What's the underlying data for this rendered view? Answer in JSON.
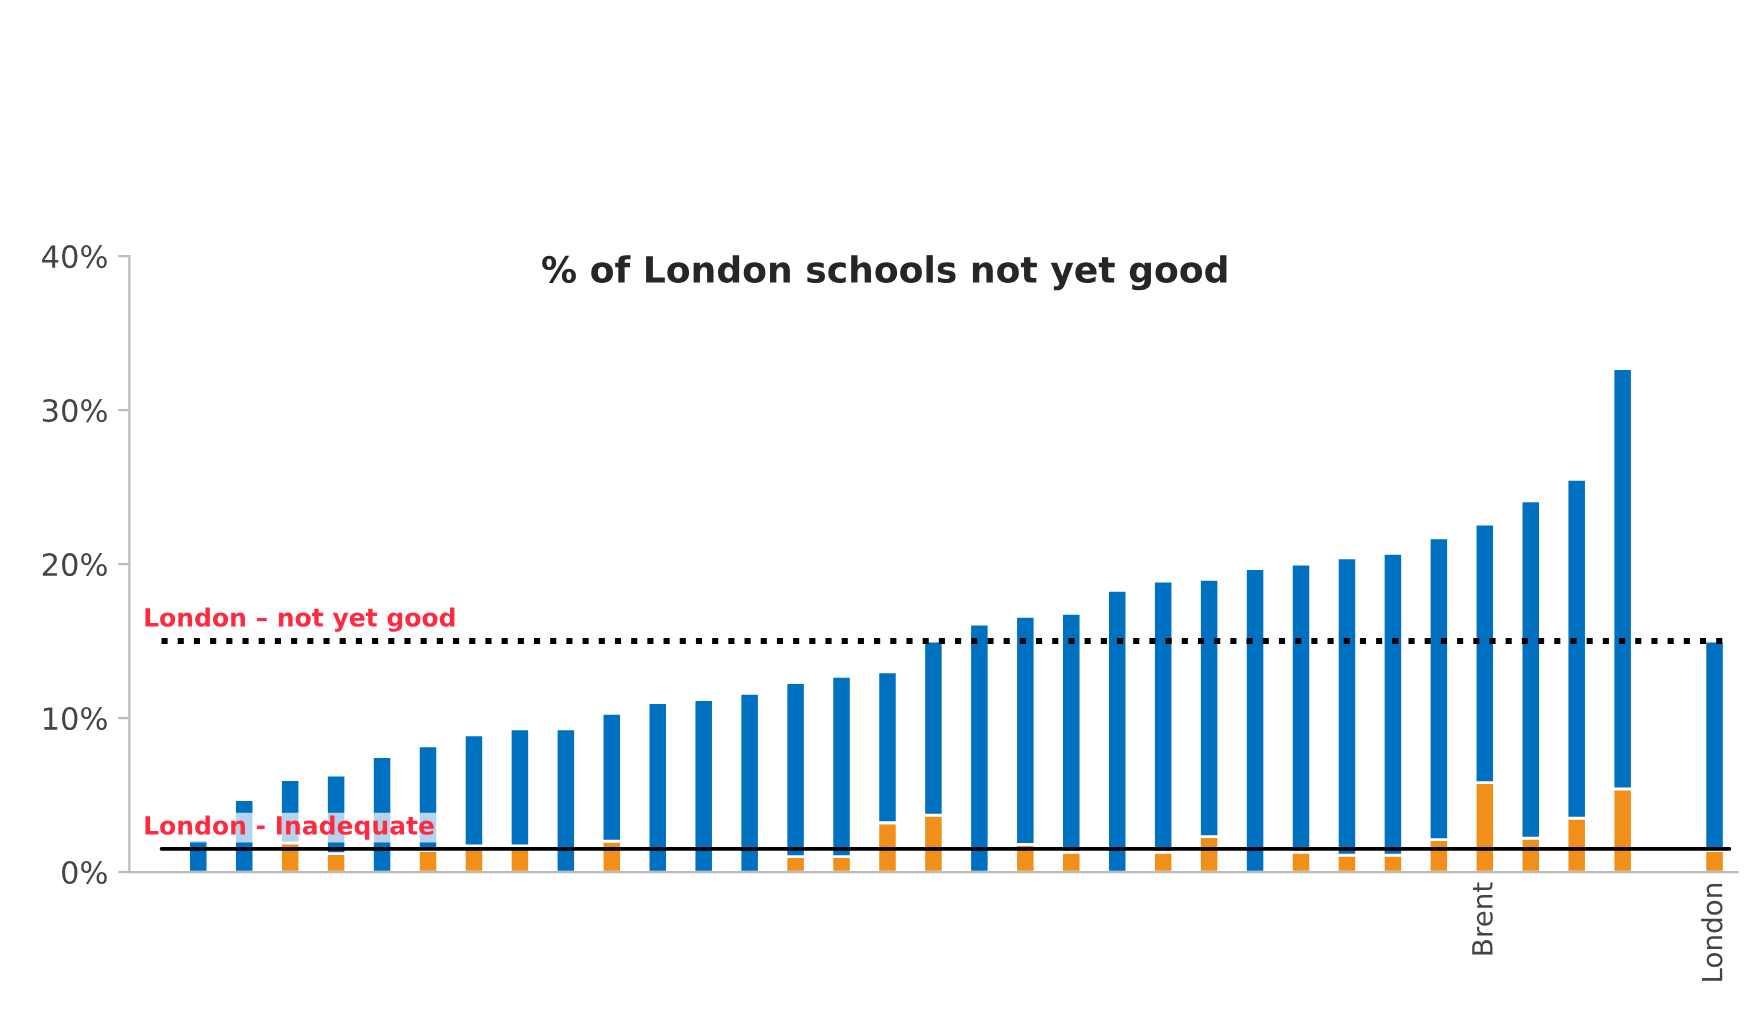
{
  "chart_data": {
    "type": "bar",
    "title": "% of London schools not yet good",
    "categories": [
      null,
      null,
      null,
      null,
      null,
      null,
      null,
      null,
      null,
      null,
      null,
      null,
      null,
      null,
      null,
      null,
      null,
      null,
      null,
      null,
      null,
      null,
      null,
      null,
      null,
      null,
      null,
      null,
      "Brent",
      null,
      null,
      null,
      null,
      "London"
    ],
    "stacked": true,
    "series": [
      {
        "color": "#f0901a",
        "values": [
          0,
          0,
          1.9,
          1.2,
          0,
          1.4,
          1.7,
          1.7,
          0,
          2.0,
          0,
          0,
          0,
          1.0,
          1.0,
          3.2,
          3.7,
          0,
          1.8,
          1.3,
          0,
          1.3,
          2.3,
          0,
          1.3,
          1.1,
          1.1,
          2.1,
          5.8,
          2.2,
          3.5,
          5.4,
          null,
          1.4
        ]
      },
      {
        "color": "#0070c0",
        "values": [
          2.1,
          4.7,
          4.1,
          5.1,
          7.5,
          6.8,
          7.2,
          7.6,
          9.3,
          8.3,
          11.0,
          11.2,
          11.6,
          11.3,
          11.7,
          9.8,
          11.3,
          16.1,
          14.8,
          15.5,
          18.3,
          17.6,
          16.7,
          19.7,
          18.7,
          19.3,
          19.6,
          19.6,
          16.8,
          21.9,
          22.0,
          27.3,
          null,
          13.6
        ]
      }
    ],
    "ylim": [
      0,
      40
    ],
    "yticks": [
      {
        "value": 0,
        "label": "0%"
      },
      {
        "value": 10,
        "label": "10%"
      },
      {
        "value": 20,
        "label": "20%"
      },
      {
        "value": 30,
        "label": "30%"
      },
      {
        "value": 40,
        "label": "40%"
      }
    ],
    "ref_lines": [
      {
        "axis": "y",
        "value": 15,
        "label": "London – not yet good",
        "color": "#000000",
        "line_style": "dotted"
      },
      {
        "axis": "y",
        "value": 1.5,
        "label": "London - Inadequate",
        "color": "#000000",
        "line_style": "solid"
      }
    ],
    "grid": false,
    "legend": false
  }
}
